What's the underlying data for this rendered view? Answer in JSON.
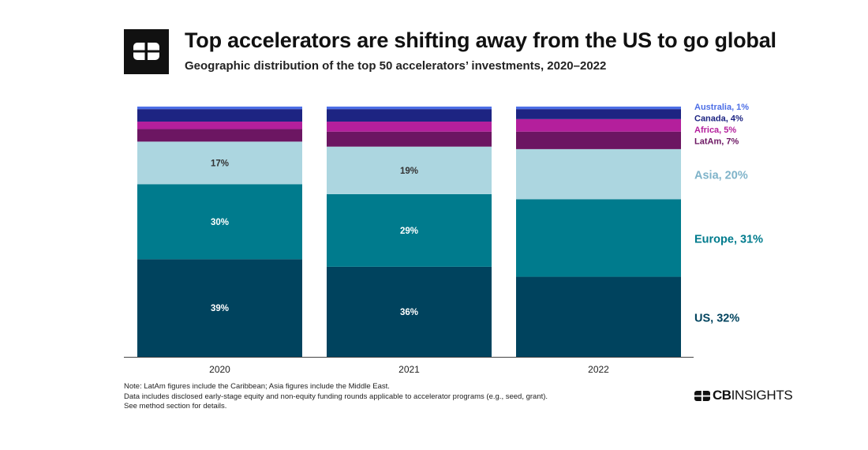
{
  "header": {
    "title": "Top accelerators are shifting away from the US to go global",
    "subtitle": "Geographic distribution of the top 50 accelerators’ investments, 2020–2022"
  },
  "notes": {
    "line1": "Note: LatAm figures include the Caribbean; Asia figures include the Middle East.",
    "line2": "Data includes disclosed early-stage equity and non-equity funding rounds applicable to accelerator programs (e.g., seed, grant).",
    "line3": "See method section for details."
  },
  "brand": {
    "cb": "CB",
    "rest": "INSIGHTS"
  },
  "colors": {
    "US": "#00435e",
    "Europe": "#007b8d",
    "Asia": "#acd6e0",
    "LatAm": "#6c1662",
    "Africa": "#b41f9c",
    "Canada": "#1d2482",
    "Australia": "#4c6ee6"
  },
  "chart_data": {
    "type": "bar",
    "stacked": true,
    "normalized": true,
    "categories": [
      "2020",
      "2021",
      "2022"
    ],
    "ylim": [
      0,
      100
    ],
    "series": [
      {
        "name": "US",
        "values": [
          39,
          36,
          32
        ],
        "labels": [
          "39%",
          "36%",
          ""
        ]
      },
      {
        "name": "Europe",
        "values": [
          30,
          29,
          31
        ],
        "labels": [
          "30%",
          "29%",
          ""
        ]
      },
      {
        "name": "Asia",
        "values": [
          17,
          19,
          20
        ],
        "labels": [
          "17%",
          "19%",
          ""
        ]
      },
      {
        "name": "LatAm",
        "values": [
          5,
          6,
          7
        ],
        "labels": [
          "",
          "",
          ""
        ]
      },
      {
        "name": "Africa",
        "values": [
          3,
          4,
          5
        ],
        "labels": [
          "",
          "",
          ""
        ]
      },
      {
        "name": "Canada",
        "values": [
          5,
          5,
          4
        ],
        "labels": [
          "",
          "",
          ""
        ]
      },
      {
        "name": "Australia",
        "values": [
          1,
          1,
          1
        ],
        "labels": [
          "",
          "",
          ""
        ]
      }
    ],
    "end_labels": [
      {
        "series": "Australia",
        "text": "Australia, 1%"
      },
      {
        "series": "Canada",
        "text": "Canada, 4%"
      },
      {
        "series": "Africa",
        "text": "Africa, 5%"
      },
      {
        "series": "LatAm",
        "text": "LatAm, 7%"
      },
      {
        "series": "Asia",
        "text": "Asia, 20%"
      },
      {
        "series": "Europe",
        "text": "Europe, 31%"
      },
      {
        "series": "US",
        "text": "US, 32%"
      }
    ],
    "grid": false
  }
}
